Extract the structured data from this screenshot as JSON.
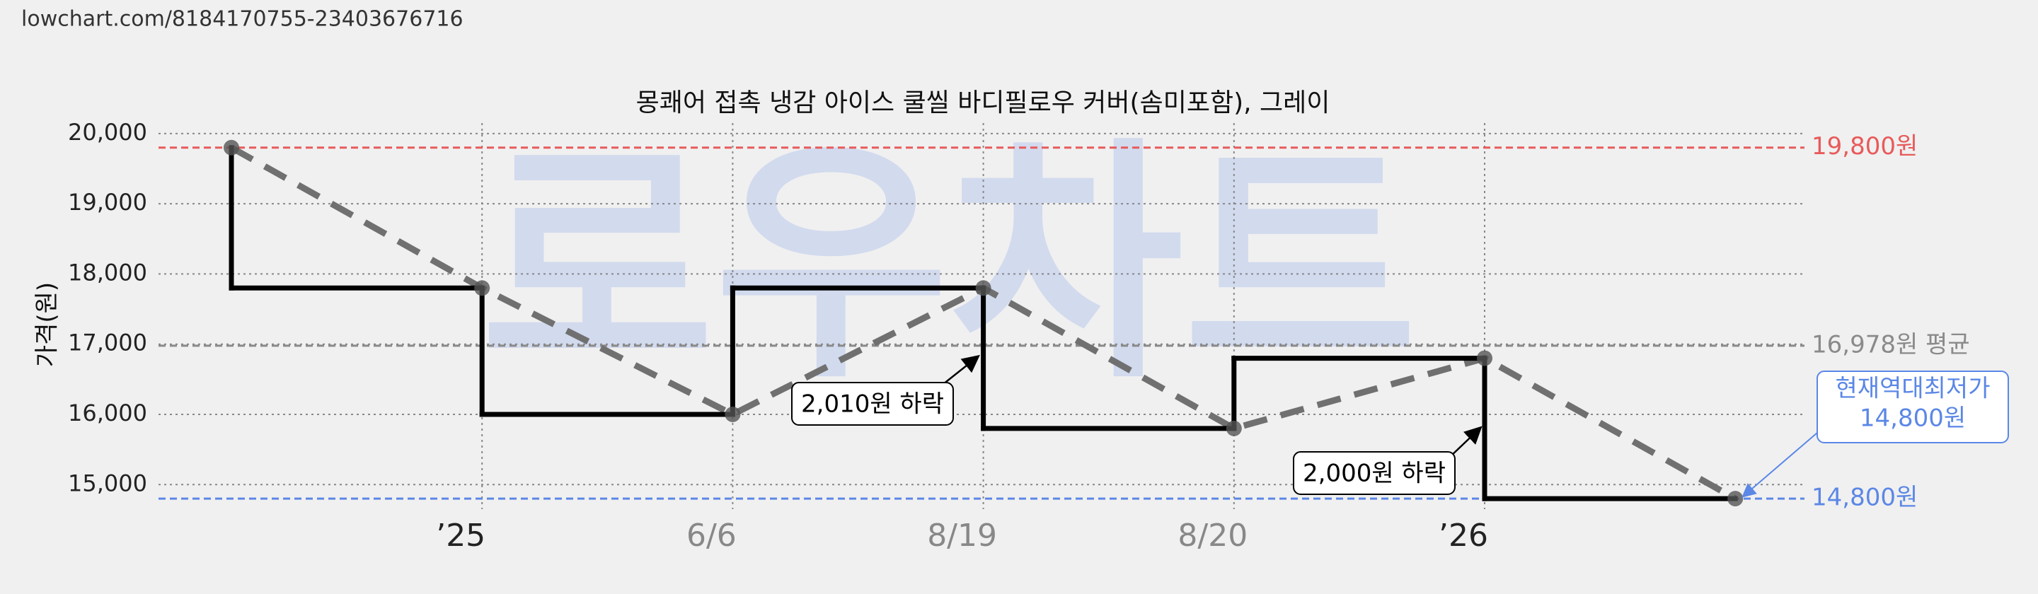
{
  "url": "lowchart.com/8184170755-23403676716",
  "chart_data": {
    "type": "step-line",
    "title": "몽쾌어 접촉 냉감 아이스 쿨씰 바디필로우 커버(솜미포함), 그레이",
    "y_label": "가격(원)",
    "watermark": "로우차트",
    "categories": [
      null,
      "’25",
      "6/6",
      "8/19",
      "8/20",
      "’26",
      null
    ],
    "category_colors": [
      "#222222",
      "#222222",
      "#888888",
      "#888888",
      "#888888",
      "#222222",
      "#222222"
    ],
    "values": [
      19800,
      17800,
      16000,
      17800,
      15800,
      16800,
      14800
    ],
    "color": "#000000",
    "trend_color": "#707070",
    "ylim": [
      14650,
      20150
    ],
    "yticks": [
      {
        "value": 15000,
        "label": "15,000"
      },
      {
        "value": 16000,
        "label": "16,000"
      },
      {
        "value": 17000,
        "label": "17,000"
      },
      {
        "value": 18000,
        "label": "18,000"
      },
      {
        "value": 19000,
        "label": "19,000"
      },
      {
        "value": 20000,
        "label": "20,000"
      }
    ],
    "grid": true,
    "ref_lines": [
      {
        "value": 19800,
        "label": "19,800원",
        "color": "#e85a5a"
      },
      {
        "value": 16978,
        "label": "16,978원 평균",
        "color": "#8a8a8a"
      },
      {
        "value": 14800,
        "label": "14,800원",
        "color": "#5b87e6"
      }
    ],
    "annotations": [
      {
        "text": "2,010원 하락"
      },
      {
        "text": "2,000원 하락"
      }
    ],
    "callout": {
      "lines": [
        "현재역대최저가",
        "14,800원"
      ],
      "color": "#5b87e6"
    }
  }
}
